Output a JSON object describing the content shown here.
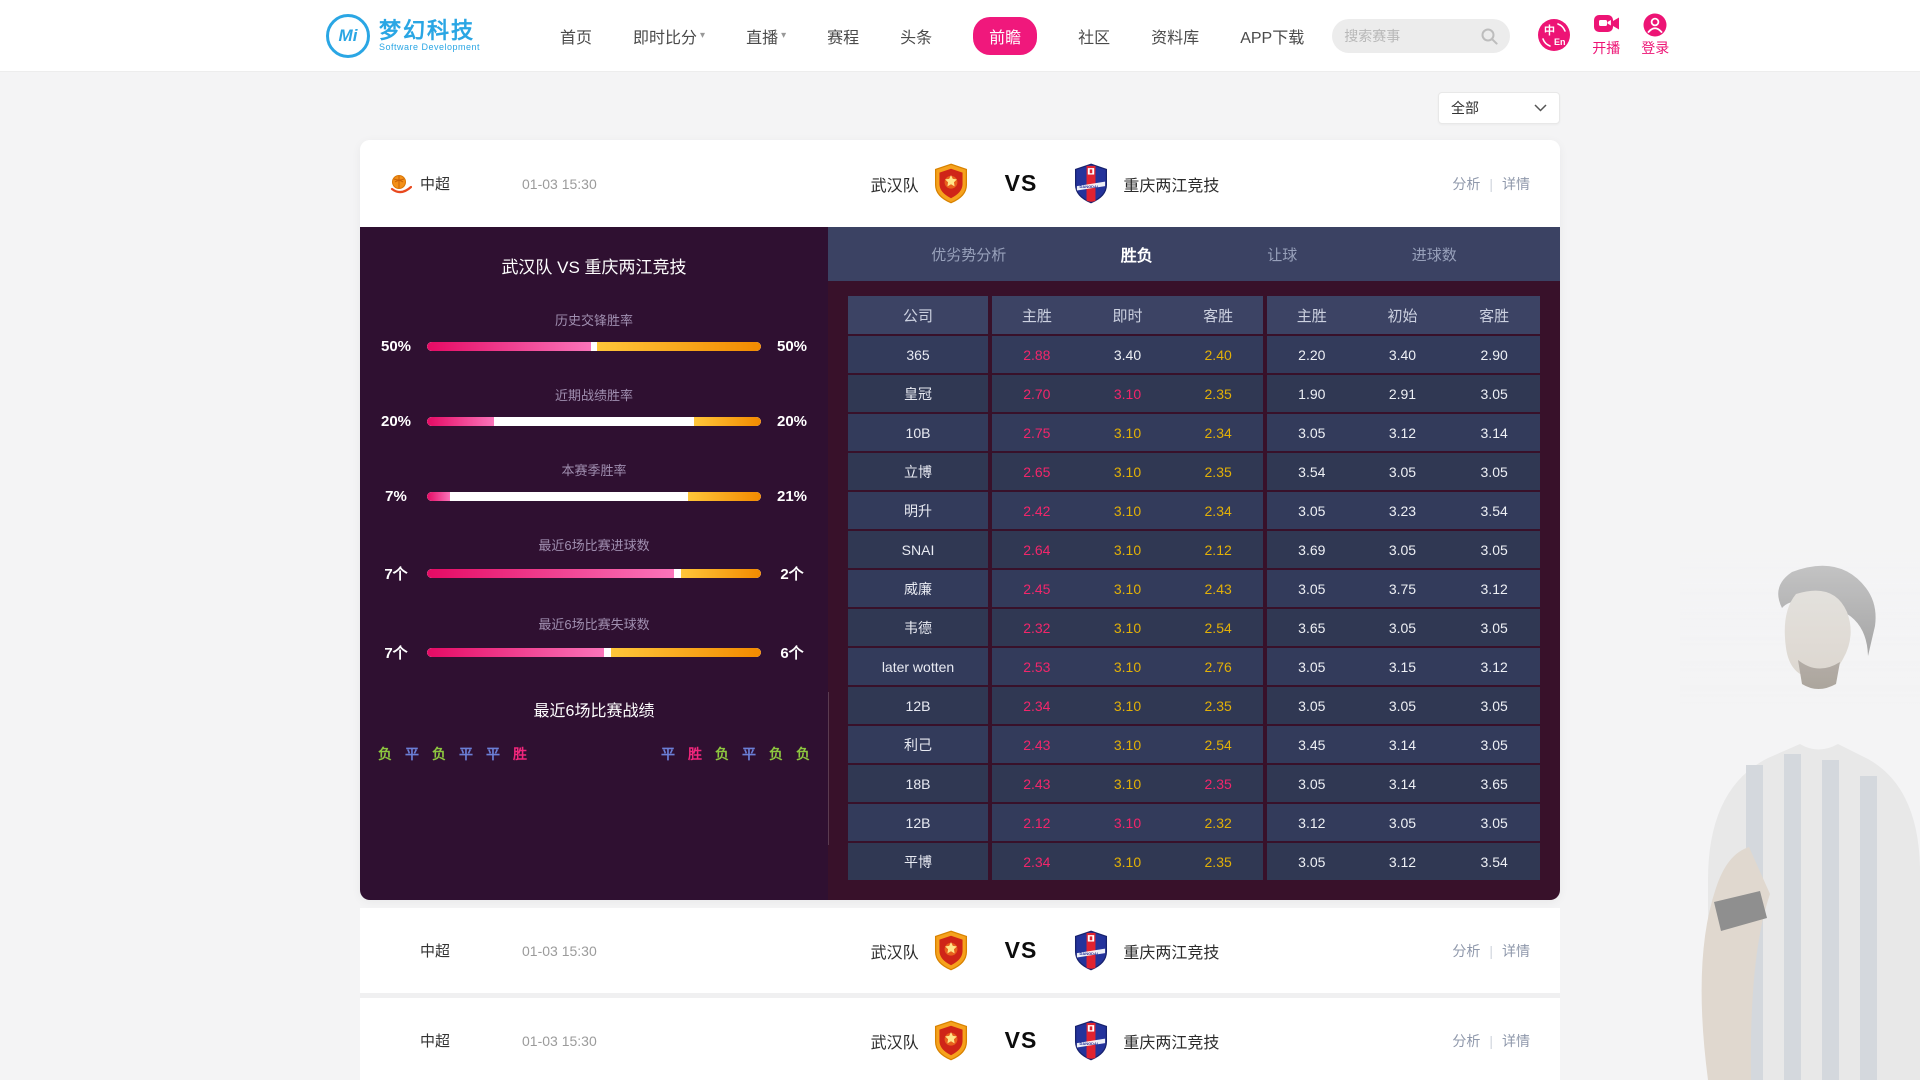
{
  "brand": {
    "mark": "Mi",
    "name": "梦幻科技",
    "subtitle": "Software Development"
  },
  "nav": {
    "items": [
      {
        "key": "home",
        "label": "首页",
        "dropdown": false,
        "active": false
      },
      {
        "key": "live-score",
        "label": "即时比分",
        "dropdown": true,
        "active": false
      },
      {
        "key": "live",
        "label": "直播",
        "dropdown": true,
        "active": false
      },
      {
        "key": "schedule",
        "label": "赛程",
        "dropdown": false,
        "active": false
      },
      {
        "key": "headlines",
        "label": "头条",
        "dropdown": false,
        "active": false
      },
      {
        "key": "preview",
        "label": "前瞻",
        "dropdown": false,
        "active": true
      },
      {
        "key": "community",
        "label": "社区",
        "dropdown": false,
        "active": false
      },
      {
        "key": "database",
        "label": "资料库",
        "dropdown": false,
        "active": false
      },
      {
        "key": "app-download",
        "label": "APP下载",
        "dropdown": false,
        "active": false
      }
    ]
  },
  "search": {
    "placeholder": "搜索赛事"
  },
  "header_actions": {
    "lang_top": "中",
    "lang_bottom": "En",
    "broadcast": "开播",
    "login": "登录"
  },
  "filter": {
    "selected": "全部"
  },
  "match": {
    "league": "中超",
    "time": "01-03 15:30",
    "home": "武汉队",
    "vs": "VS",
    "away": "重庆两江竞技",
    "analysis": "分析",
    "detail": "详情"
  },
  "panel": {
    "title": "武汉队 VS 重庆两江竞技",
    "bars": [
      {
        "label": "历史交锋胜率",
        "left": "50%",
        "right": "50%",
        "left_pct": 49,
        "right_pct": 49
      },
      {
        "label": "近期战绩胜率",
        "left": "20%",
        "right": "20%",
        "left_pct": 20,
        "right_pct": 20
      },
      {
        "label": "本赛季胜率",
        "left": "7%",
        "right": "21%",
        "left_pct": 7,
        "right_pct": 22
      },
      {
        "label": "最近6场比赛进球数",
        "left": "7个",
        "right": "2个",
        "left_pct": 74,
        "right_pct": 24
      },
      {
        "label": "最近6场比赛失球数",
        "left": "7个",
        "right": "6个",
        "left_pct": 53,
        "right_pct": 45
      }
    ],
    "recent_title": "最近6场比赛战绩",
    "recent_home": [
      {
        "t": "负",
        "r": "lose"
      },
      {
        "t": "平",
        "r": "draw"
      },
      {
        "t": "负",
        "r": "lose"
      },
      {
        "t": "平",
        "r": "draw"
      },
      {
        "t": "平",
        "r": "draw"
      },
      {
        "t": "胜",
        "r": "win"
      }
    ],
    "recent_away": [
      {
        "t": "平",
        "r": "draw"
      },
      {
        "t": "胜",
        "r": "win"
      },
      {
        "t": "负",
        "r": "lose"
      },
      {
        "t": "平",
        "r": "draw"
      },
      {
        "t": "负",
        "r": "lose"
      },
      {
        "t": "负",
        "r": "lose"
      }
    ]
  },
  "tabs": [
    {
      "key": "analysis",
      "label": "优劣势分析",
      "active": false
    },
    {
      "key": "win-loss",
      "label": "胜负",
      "active": true
    },
    {
      "key": "handicap",
      "label": "让球",
      "active": false
    },
    {
      "key": "goals",
      "label": "进球数",
      "active": false
    }
  ],
  "odds_table": {
    "headers": [
      "公司",
      "主胜",
      "即时",
      "客胜",
      "主胜",
      "初始",
      "客胜"
    ],
    "rows": [
      {
        "company": "365",
        "cells": [
          {
            "v": "2.88",
            "c": "pink"
          },
          {
            "v": "3.40",
            "c": "white"
          },
          {
            "v": "2.40",
            "c": "yellow"
          },
          {
            "v": "2.20",
            "c": "white"
          },
          {
            "v": "3.40",
            "c": "white"
          },
          {
            "v": "2.90",
            "c": "white"
          }
        ]
      },
      {
        "company": "皇冠",
        "cells": [
          {
            "v": "2.70",
            "c": "pink"
          },
          {
            "v": "3.10",
            "c": "pink"
          },
          {
            "v": "2.35",
            "c": "yellow"
          },
          {
            "v": "1.90",
            "c": "white"
          },
          {
            "v": "2.91",
            "c": "white"
          },
          {
            "v": "3.05",
            "c": "white"
          }
        ]
      },
      {
        "company": "10B",
        "cells": [
          {
            "v": "2.75",
            "c": "pink"
          },
          {
            "v": "3.10",
            "c": "yellow"
          },
          {
            "v": "2.34",
            "c": "yellow"
          },
          {
            "v": "3.05",
            "c": "white"
          },
          {
            "v": "3.12",
            "c": "white"
          },
          {
            "v": "3.14",
            "c": "white"
          }
        ]
      },
      {
        "company": "立博",
        "cells": [
          {
            "v": "2.65",
            "c": "pink"
          },
          {
            "v": "3.10",
            "c": "yellow"
          },
          {
            "v": "2.35",
            "c": "yellow"
          },
          {
            "v": "3.54",
            "c": "white"
          },
          {
            "v": "3.05",
            "c": "white"
          },
          {
            "v": "3.05",
            "c": "white"
          }
        ]
      },
      {
        "company": "明升",
        "cells": [
          {
            "v": "2.42",
            "c": "pink"
          },
          {
            "v": "3.10",
            "c": "yellow"
          },
          {
            "v": "2.34",
            "c": "yellow"
          },
          {
            "v": "3.05",
            "c": "white"
          },
          {
            "v": "3.23",
            "c": "white"
          },
          {
            "v": "3.54",
            "c": "white"
          }
        ]
      },
      {
        "company": "SNAI",
        "cells": [
          {
            "v": "2.64",
            "c": "pink"
          },
          {
            "v": "3.10",
            "c": "yellow"
          },
          {
            "v": "2.12",
            "c": "yellow"
          },
          {
            "v": "3.69",
            "c": "white"
          },
          {
            "v": "3.05",
            "c": "white"
          },
          {
            "v": "3.05",
            "c": "white"
          }
        ]
      },
      {
        "company": "威廉",
        "cells": [
          {
            "v": "2.45",
            "c": "pink"
          },
          {
            "v": "3.10",
            "c": "yellow"
          },
          {
            "v": "2.43",
            "c": "yellow"
          },
          {
            "v": "3.05",
            "c": "white"
          },
          {
            "v": "3.75",
            "c": "white"
          },
          {
            "v": "3.12",
            "c": "white"
          }
        ]
      },
      {
        "company": "韦德",
        "cells": [
          {
            "v": "2.32",
            "c": "pink"
          },
          {
            "v": "3.10",
            "c": "yellow"
          },
          {
            "v": "2.54",
            "c": "yellow"
          },
          {
            "v": "3.65",
            "c": "white"
          },
          {
            "v": "3.05",
            "c": "white"
          },
          {
            "v": "3.05",
            "c": "white"
          }
        ]
      },
      {
        "company": "later wotten",
        "cells": [
          {
            "v": "2.53",
            "c": "pink"
          },
          {
            "v": "3.10",
            "c": "yellow"
          },
          {
            "v": "2.76",
            "c": "yellow"
          },
          {
            "v": "3.05",
            "c": "white"
          },
          {
            "v": "3.15",
            "c": "white"
          },
          {
            "v": "3.12",
            "c": "white"
          }
        ]
      },
      {
        "company": "12B",
        "cells": [
          {
            "v": "2.34",
            "c": "pink"
          },
          {
            "v": "3.10",
            "c": "yellow"
          },
          {
            "v": "2.35",
            "c": "yellow"
          },
          {
            "v": "3.05",
            "c": "white"
          },
          {
            "v": "3.05",
            "c": "white"
          },
          {
            "v": "3.05",
            "c": "white"
          }
        ]
      },
      {
        "company": "利己",
        "cells": [
          {
            "v": "2.43",
            "c": "pink"
          },
          {
            "v": "3.10",
            "c": "yellow"
          },
          {
            "v": "2.54",
            "c": "yellow"
          },
          {
            "v": "3.45",
            "c": "white"
          },
          {
            "v": "3.14",
            "c": "white"
          },
          {
            "v": "3.05",
            "c": "white"
          }
        ]
      },
      {
        "company": "18B",
        "cells": [
          {
            "v": "2.43",
            "c": "pink"
          },
          {
            "v": "3.10",
            "c": "yellow"
          },
          {
            "v": "2.35",
            "c": "pink"
          },
          {
            "v": "3.05",
            "c": "white"
          },
          {
            "v": "3.14",
            "c": "white"
          },
          {
            "v": "3.65",
            "c": "white"
          }
        ]
      },
      {
        "company": "12B",
        "cells": [
          {
            "v": "2.12",
            "c": "pink"
          },
          {
            "v": "3.10",
            "c": "pink"
          },
          {
            "v": "2.32",
            "c": "yellow"
          },
          {
            "v": "3.12",
            "c": "white"
          },
          {
            "v": "3.05",
            "c": "white"
          },
          {
            "v": "3.05",
            "c": "white"
          }
        ]
      },
      {
        "company": "平博",
        "cells": [
          {
            "v": "2.34",
            "c": "pink"
          },
          {
            "v": "3.10",
            "c": "yellow"
          },
          {
            "v": "2.35",
            "c": "yellow"
          },
          {
            "v": "3.05",
            "c": "white"
          },
          {
            "v": "3.12",
            "c": "white"
          },
          {
            "v": "3.54",
            "c": "white"
          }
        ]
      }
    ]
  },
  "more_matches": [
    {
      "league": "中超",
      "time": "01-03 15:30",
      "home": "武汉队",
      "vs": "VS",
      "away": "重庆两江竞技",
      "analysis": "分析",
      "detail": "详情"
    },
    {
      "league": "中超",
      "time": "01-03 15:30",
      "home": "武汉队",
      "vs": "VS",
      "away": "重庆两江竞技",
      "analysis": "分析",
      "detail": "详情"
    }
  ],
  "colors": {
    "brand_pink": "#ed1475",
    "brand_blue": "#2aa6e4",
    "odds_pink": "#f2266b",
    "odds_yellow": "#e2b007",
    "odds_white": "#eef0f5",
    "result_win": "#f2267c",
    "result_draw": "#6b7fd7",
    "result_lose": "#8dc63f",
    "bar_pink": "#e50a64",
    "bar_orange": "#f28a00",
    "panel_bg": "#2f1031",
    "table_bg": "#38112a",
    "tabbar_bg": "#3b4263"
  }
}
